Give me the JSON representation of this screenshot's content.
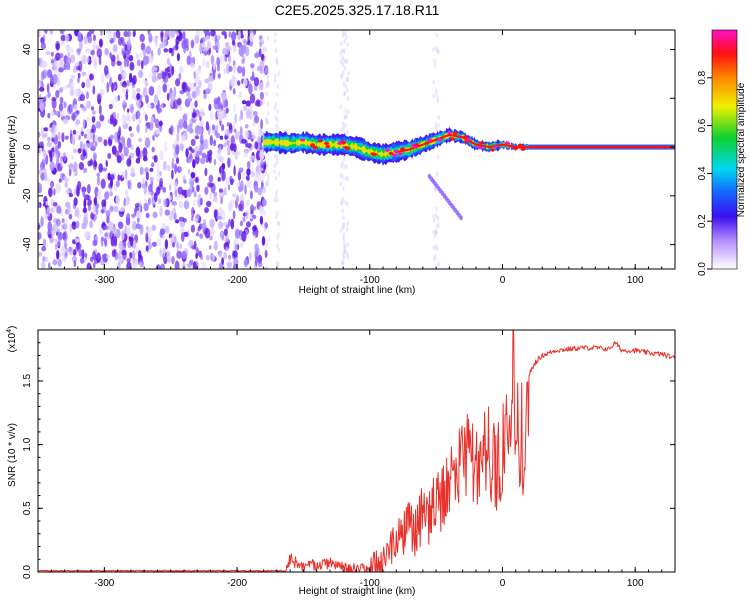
{
  "title": "C2E5.2025.325.17.18.R11",
  "colors": {
    "snr_line": "#e8312b",
    "spectrogram_noise": "#6a1ee8",
    "axis": "#000000"
  },
  "chart_data": [
    {
      "type": "heatmap",
      "name": "spectrogram",
      "xlabel": "Height of straight line (km)",
      "ylabel": "Frequency (Hz)",
      "xlim": [
        -350,
        130
      ],
      "ylim": [
        -50,
        48
      ],
      "xticks": [
        -300,
        -200,
        -100,
        0,
        100
      ],
      "yticks": [
        -40,
        -20,
        0,
        20,
        40
      ],
      "noise_region_x": [
        -350,
        -178
      ],
      "signal_band": {
        "x": [
          -180,
          -170,
          -160,
          -150,
          -140,
          -130,
          -120,
          -110,
          -100,
          -90,
          -80,
          -70,
          -60,
          -50,
          -40,
          -30,
          -20,
          -10,
          0,
          10,
          20,
          50,
          75,
          100,
          130
        ],
        "center_hz": [
          2,
          2,
          1.5,
          2,
          1,
          1,
          1,
          0,
          -2,
          -3,
          -2,
          -1,
          1,
          3,
          5,
          4,
          1,
          0,
          1,
          0,
          0,
          0,
          0,
          0,
          0
        ],
        "halfwidth_hz": [
          4,
          4,
          4,
          4,
          4,
          4,
          4,
          4,
          4,
          4,
          4,
          3.5,
          3.5,
          3,
          2.5,
          2.5,
          2,
          2,
          1.5,
          1,
          1,
          1,
          1,
          1,
          1
        ]
      },
      "colorbar": {
        "label": "Normalized spectral amplitude",
        "range": [
          0,
          1
        ],
        "ticks": [
          0.0,
          0.2,
          0.4,
          0.6,
          0.8
        ],
        "tick_labels": [
          "0.0",
          "0.2",
          "0.4",
          "0.6",
          "0.8"
        ]
      }
    },
    {
      "type": "line",
      "name": "snr",
      "xlabel": "Height of straight line (km)",
      "ylabel": "SNR (10 * v/v)",
      "yscale_label": "(x10",
      "yscale_exponent": "4",
      "scale": 10000,
      "xlim": [
        -350,
        130
      ],
      "ylim": [
        0,
        1.9
      ],
      "xticks": [
        -300,
        -200,
        -100,
        0,
        100
      ],
      "yticks": [
        0.0,
        0.5,
        1.0,
        1.5
      ],
      "ytick_labels": [
        "0.0",
        "0.5",
        "1.0",
        "1.5"
      ],
      "series": [
        {
          "x": [
            -350,
            -300,
            -250,
            -200,
            -163,
            -160,
            -150,
            -140,
            -130,
            -120,
            -110,
            -100,
            -95,
            -90,
            -85,
            -80,
            -75,
            -70,
            -65,
            -60,
            -55,
            -50,
            -45,
            -40,
            -35,
            -30,
            -25,
            -20,
            -15,
            -10,
            -5,
            0,
            5,
            8,
            10,
            15,
            18,
            20,
            25,
            30,
            40,
            50,
            60,
            70,
            80,
            85,
            90,
            100,
            110,
            120,
            130
          ],
          "values": [
            0.01,
            0.01,
            0.01,
            0.01,
            0.01,
            0.12,
            0.06,
            0.08,
            0.09,
            0.05,
            0.04,
            0.03,
            0.12,
            0.15,
            0.25,
            0.3,
            0.35,
            0.45,
            0.4,
            0.55,
            0.5,
            0.75,
            0.65,
            0.85,
            0.95,
            1.0,
            1.1,
            0.9,
            1.15,
            1.1,
            1.0,
            1.15,
            1.3,
            1.85,
            1.4,
            1.2,
            1.35,
            1.55,
            1.65,
            1.7,
            1.74,
            1.75,
            1.76,
            1.76,
            1.75,
            1.8,
            1.74,
            1.74,
            1.72,
            1.71,
            1.68
          ]
        }
      ]
    }
  ]
}
